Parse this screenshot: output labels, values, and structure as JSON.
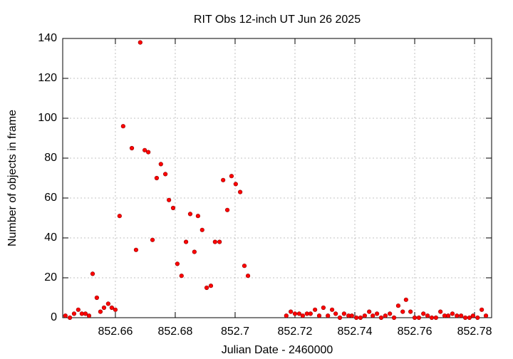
{
  "chart_data": {
    "type": "scatter",
    "title": "RIT Obs 12-inch UT Jun 26 2025",
    "x_label": "Julian Date - 2460000",
    "y_label": "Number of objects in frame",
    "x": [
      852.6433,
      852.6448,
      852.6462,
      852.6476,
      852.6488,
      852.65,
      852.6512,
      852.6524,
      852.6538,
      852.655,
      852.6562,
      852.6576,
      852.6588,
      852.66,
      852.6614,
      852.6626,
      852.6655,
      852.6669,
      852.6683,
      852.6698,
      852.671,
      852.6724,
      852.6738,
      852.6752,
      852.6767,
      852.6779,
      852.6793,
      852.6807,
      852.6821,
      852.6836,
      852.685,
      852.6864,
      852.6876,
      852.689,
      852.6905,
      852.6919,
      852.6933,
      852.6948,
      852.696,
      852.6974,
      852.6988,
      852.7002,
      852.7017,
      852.7031,
      852.7043,
      852.7171,
      852.7186,
      852.72,
      852.7214,
      852.7226,
      852.724,
      852.7252,
      852.7267,
      852.7281,
      852.7295,
      852.731,
      852.7324,
      852.7336,
      852.735,
      852.7364,
      852.7379,
      852.739,
      852.7405,
      852.7419,
      852.7433,
      852.7448,
      852.746,
      852.7474,
      852.7488,
      852.7502,
      852.7517,
      852.7531,
      852.7545,
      852.756,
      852.7571,
      852.7586,
      852.76,
      852.7614,
      852.7629,
      852.7643,
      852.7657,
      852.7671,
      852.7686,
      852.77,
      852.7712,
      852.7726,
      852.7741,
      852.7755,
      852.7769,
      852.7783,
      852.7795,
      852.781,
      852.7824,
      852.7838
    ],
    "values": [
      1,
      0,
      2,
      4,
      2,
      2,
      1,
      22,
      10,
      3,
      5,
      7,
      5,
      4,
      51,
      96,
      85,
      34,
      138,
      84,
      83,
      39,
      70,
      77,
      72,
      59,
      55,
      27,
      21,
      38,
      52,
      33,
      51,
      44,
      15,
      16,
      38,
      38,
      69,
      54,
      71,
      67,
      63,
      26,
      21,
      1,
      3,
      2,
      2,
      1,
      2,
      2,
      4,
      1,
      5,
      1,
      4,
      2,
      0,
      2,
      1,
      1,
      0,
      0,
      1,
      3,
      1,
      2,
      0,
      1,
      2,
      0,
      6,
      3,
      9,
      3,
      0,
      0,
      2,
      1,
      0,
      0,
      3,
      1,
      1,
      2,
      1,
      1,
      0,
      0,
      1,
      0,
      4,
      1
    ],
    "color": "#ff0000",
    "xlim": [
      852.6424,
      852.7857
    ],
    "xticks": [
      852.66,
      852.68,
      852.7,
      852.72,
      852.74,
      852.76,
      852.78
    ],
    "ylim": [
      0,
      140
    ],
    "yticks": [
      0,
      20,
      40,
      60,
      80,
      100,
      120,
      140
    ],
    "grid": true
  }
}
